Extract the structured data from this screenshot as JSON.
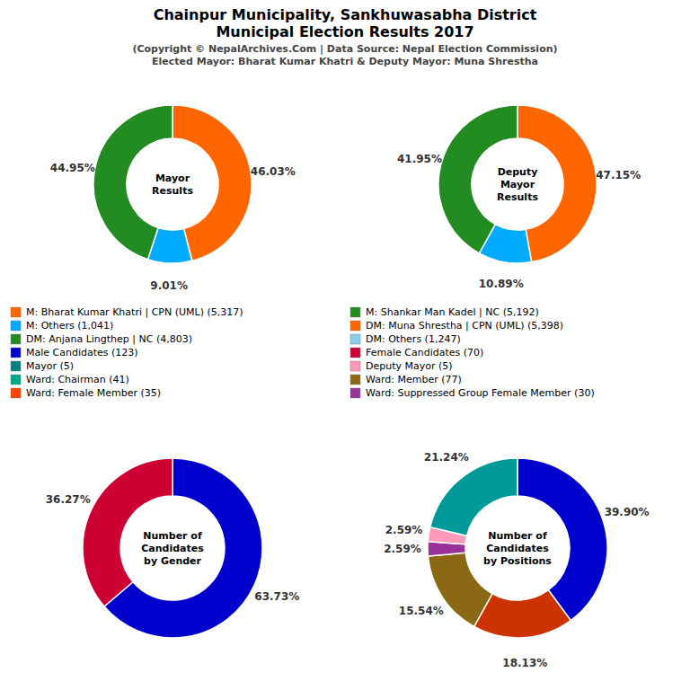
{
  "title": [
    "Chainpur Municipality, Sankhuwasabha District",
    "Municipal Election Results 2017"
  ],
  "subtitle": [
    "(Copyright © NepalArchives.Com | Data Source: Nepal Election Commission)",
    "Elected Mayor: Bharat Kumar Khatri & Deputy Mayor: Muna Shrestha"
  ],
  "chart_data": [
    {
      "type": "donut",
      "title": "Mayor\nResults",
      "values": [
        46.03,
        9.01,
        44.95
      ],
      "value_labels": [
        "46.03%",
        "9.01%",
        "44.95%"
      ],
      "colors": [
        "#FF6600",
        "#00AAFF",
        "#228B22"
      ],
      "data_labels": true
    },
    {
      "type": "donut",
      "title": "Deputy\nMayor\nResults",
      "values": [
        47.15,
        10.89,
        41.95
      ],
      "value_labels": [
        "47.15%",
        "10.89%",
        "41.95%"
      ],
      "colors": [
        "#FF6600",
        "#00AAFF",
        "#228B22"
      ],
      "data_labels": true
    },
    {
      "type": "donut",
      "title": "Number of\nCandidates\nby Gender",
      "values": [
        63.73,
        36.27
      ],
      "value_labels": [
        "63.73%",
        "36.27%"
      ],
      "colors": [
        "#0000CC",
        "#CC0033"
      ],
      "data_labels": true
    },
    {
      "type": "donut",
      "title": "Number of\nCandidates\nby Positions",
      "values": [
        39.9,
        18.13,
        15.54,
        2.59,
        2.59,
        21.24
      ],
      "value_labels": [
        "39.90%",
        "18.13%",
        "15.54%",
        "2.59%",
        "2.59%",
        "21.24%"
      ],
      "colors": [
        "#0000CC",
        "#CC3300",
        "#8B6914",
        "#993399",
        "#FF99BB",
        "#009999"
      ],
      "data_labels": true
    }
  ],
  "legend_entries": [
    {
      "name": "M: Bharat Kumar Khatri | CPN (UML) (5,317)",
      "color": "#FF6600"
    },
    {
      "name": "M: Others (1,041)",
      "color": "#00AAFF"
    },
    {
      "name": "DM: Anjana Lingthep | NC (4,803)",
      "color": "#228B22"
    },
    {
      "name": "Male Candidates (123)",
      "color": "#0000CC"
    },
    {
      "name": "Mayor (5)",
      "color": "#008080"
    },
    {
      "name": "Ward: Chairman (41)",
      "color": "#00AA88"
    },
    {
      "name": "Ward: Female Member (35)",
      "color": "#FF4500"
    },
    {
      "name": "M: Shankar Man Kadel | NC (5,192)",
      "color": "#228B22"
    },
    {
      "name": "DM: Muna Shrestha | CPN (UML) (5,398)",
      "color": "#FF6600"
    },
    {
      "name": "DM: Others (1,247)",
      "color": "#87CEEB"
    },
    {
      "name": "Female Candidates (70)",
      "color": "#CC0033"
    },
    {
      "name": "Deputy Mayor (5)",
      "color": "#FF99BB"
    },
    {
      "name": "Ward: Member (77)",
      "color": "#8B6914"
    },
    {
      "name": "Ward: Suppressed Group Female Member (30)",
      "color": "#993399"
    }
  ]
}
